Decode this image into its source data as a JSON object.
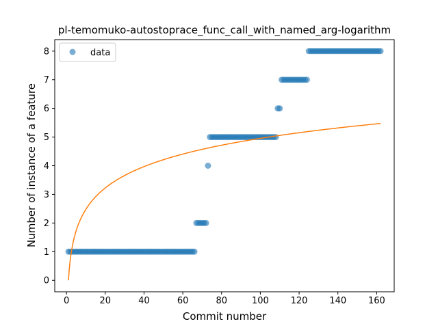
{
  "chart_data": {
    "type": "scatter",
    "title": "pl-temomuko-autostoprace_func_call_with_named_arg-logarithm",
    "xlabel": "Commit number",
    "ylabel": "Number of instance of a feature",
    "xlim": [
      -6.05,
      169.05
    ],
    "ylim": [
      -0.4,
      8.4
    ],
    "xticks": [
      0,
      20,
      40,
      60,
      80,
      100,
      120,
      140,
      160
    ],
    "yticks": [
      0,
      1,
      2,
      3,
      4,
      5,
      6,
      7,
      8
    ],
    "grid": false,
    "legend": {
      "position": "top-left",
      "entries": [
        "data"
      ]
    },
    "series": [
      {
        "name": "data",
        "kind": "scatter",
        "color": "#1f77b4",
        "segments": [
          {
            "x_from": 1,
            "x_to": 66,
            "y": 1
          },
          {
            "x_from": 67,
            "x_to": 72,
            "y": 2
          },
          {
            "x_from": 73,
            "x_to": 73,
            "y": 4
          },
          {
            "x_from": 74,
            "x_to": 108,
            "y": 5
          },
          {
            "x_from": 109,
            "x_to": 110,
            "y": 6
          },
          {
            "x_from": 111,
            "x_to": 124,
            "y": 7
          },
          {
            "x_from": 125,
            "x_to": 162,
            "y": 8
          }
        ]
      },
      {
        "kind": "line",
        "color": "#ff7f0e",
        "model": "logarithmic",
        "a": 1.076,
        "b": 0.0,
        "x_from": 1,
        "x_to": 162
      }
    ]
  }
}
